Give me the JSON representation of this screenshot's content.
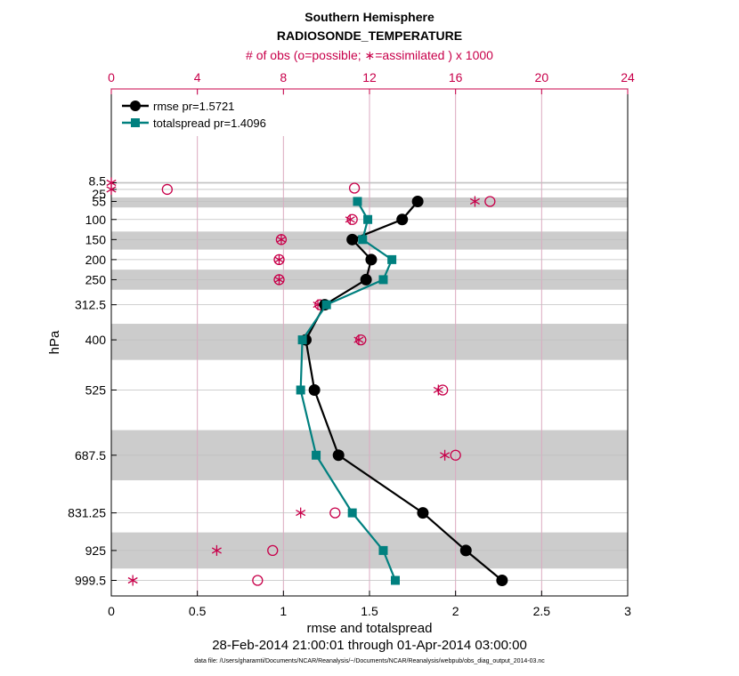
{
  "chart_data": {
    "type": "line",
    "title": "Southern Hemisphere",
    "subtitle": "RADIOSONDE_TEMPERATURE",
    "top_axis_label": "# of obs (o=possible; ∗=assimilated ) x 1000",
    "xlabel": "rmse and totalspread",
    "ylabel": "hPa",
    "date_range": "28-Feb-2014 21:00:01 through 01-Apr-2014 03:00:00",
    "footnote": "data file: /Users/gharamti/Documents/NCAR/Reanalysis/~/Documents/NCAR/Reanalysis/webpub/obs_diag_output_2014-03.nc",
    "xlim": [
      0,
      3
    ],
    "x_ticks": [
      "0",
      "0.5",
      "1",
      "1.5",
      "2",
      "2.5",
      "3"
    ],
    "top_xlim": [
      0,
      24
    ],
    "top_ticks": [
      "0",
      "4",
      "8",
      "12",
      "16",
      "20",
      "24"
    ],
    "levels": [
      8.5,
      25,
      55,
      100,
      150,
      200,
      250,
      312.5,
      400,
      525,
      687.5,
      831.25,
      925,
      999.5
    ],
    "level_labels": [
      "8.5",
      "25",
      "55",
      "100",
      "150",
      "200",
      "250",
      "312.5",
      "400",
      "525",
      "687.5",
      "831.25",
      "925",
      "999.5"
    ],
    "series": [
      {
        "name": "rmse pr=1.5721",
        "color": "#000000",
        "marker": "circle",
        "levels": [
          55,
          100,
          150,
          200,
          250,
          312.5,
          400,
          525,
          687.5,
          831.25,
          925,
          999.5
        ],
        "values": [
          1.78,
          1.69,
          1.4,
          1.51,
          1.48,
          1.24,
          1.13,
          1.18,
          1.32,
          1.81,
          2.06,
          2.27
        ]
      },
      {
        "name": "totalspread pr=1.4096",
        "color": "#00807f",
        "marker": "square",
        "levels": [
          55,
          100,
          150,
          200,
          250,
          312.5,
          400,
          525,
          687.5,
          831.25,
          925,
          999.5
        ],
        "values": [
          1.43,
          1.49,
          1.46,
          1.63,
          1.58,
          1.25,
          1.11,
          1.1,
          1.19,
          1.4,
          1.58,
          1.65
        ]
      }
    ],
    "obs_possible": {
      "levels": [
        25,
        55,
        100,
        150,
        200,
        250,
        312.5,
        400,
        525,
        687.5,
        831.25,
        925,
        999.5
      ],
      "values": [
        2.6,
        17.6,
        11.2,
        7.9,
        7.8,
        7.8,
        9.7,
        11.6,
        15.4,
        16.0,
        10.4,
        7.5,
        6.8
      ],
      "extra": [
        {
          "level": 8.5,
          "value": 11.3
        }
      ]
    },
    "obs_assimilated": {
      "levels": [
        8.5,
        25,
        55,
        100,
        150,
        200,
        250,
        312.5,
        400,
        525,
        687.5,
        831.25,
        925,
        999.5
      ],
      "values": [
        0.0,
        0.0,
        16.9,
        11.1,
        7.9,
        7.8,
        7.8,
        9.6,
        11.5,
        15.2,
        15.5,
        8.8,
        4.9,
        1.0
      ]
    },
    "shaded_layers": [
      [
        6.5,
        10.5
      ],
      [
        45,
        70
      ],
      [
        130,
        175
      ],
      [
        225,
        275
      ],
      [
        360,
        450
      ],
      [
        625,
        750
      ],
      [
        880,
        970
      ]
    ],
    "colors": {
      "rmse": "#000000",
      "totalspread": "#00807f",
      "obs": "#c8004a",
      "shade": "#cccccc",
      "grid": "#dba9c0"
    }
  }
}
